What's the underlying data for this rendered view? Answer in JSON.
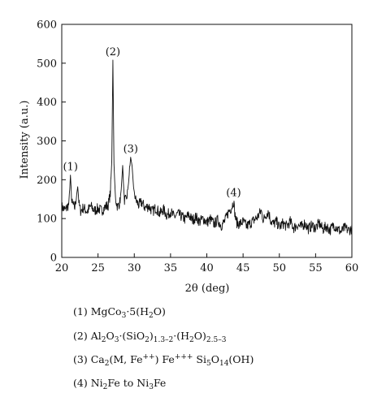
{
  "chart_data": {
    "type": "line",
    "title": "",
    "xlabel": "2θ (deg)",
    "ylabel": "Intensity (a.u.)",
    "xlim": [
      20,
      60
    ],
    "ylim": [
      0,
      600
    ],
    "xticks": [
      20,
      25,
      30,
      35,
      40,
      45,
      50,
      55,
      60
    ],
    "yticks": [
      0,
      100,
      200,
      300,
      400,
      500,
      600
    ],
    "grid": false,
    "line_color": "#111111",
    "series": [
      {
        "x": [
          20.0,
          20.5,
          21.0,
          21.2,
          21.4,
          21.8,
          22.2,
          22.4,
          22.6,
          23.0,
          23.5,
          24.0,
          24.5,
          25.0,
          25.5,
          26.0,
          26.4,
          26.7,
          26.9,
          27.05,
          27.2,
          27.4,
          27.7,
          28.0,
          28.2,
          28.4,
          28.6,
          28.9,
          29.2,
          29.5,
          29.7,
          29.9,
          30.2,
          30.6,
          31.0,
          31.5,
          32.0,
          32.5,
          33.0,
          33.5,
          34.0,
          34.5,
          35.0,
          35.5,
          36.0,
          36.5,
          37.0,
          37.5,
          38.0,
          38.5,
          39.0,
          39.5,
          40.0,
          40.5,
          41.0,
          41.5,
          42.0,
          42.5,
          43.0,
          43.4,
          43.7,
          43.9,
          44.1,
          44.5,
          45.0,
          45.5,
          46.0,
          46.5,
          47.0,
          47.5,
          47.8,
          48.2,
          48.5,
          48.8,
          49.2,
          49.6,
          50.0,
          50.5,
          51.0,
          51.5,
          52.0,
          52.5,
          53.0,
          53.5,
          54.0,
          54.5,
          55.0,
          55.5,
          56.0,
          56.5,
          57.0,
          57.5,
          58.0,
          58.5,
          59.0,
          59.5,
          60.0
        ],
        "y": [
          130,
          122,
          138,
          212,
          140,
          128,
          182,
          135,
          120,
          128,
          118,
          132,
          120,
          126,
          120,
          130,
          135,
          165,
          250,
          508,
          240,
          152,
          130,
          142,
          175,
          237,
          150,
          145,
          190,
          258,
          235,
          180,
          148,
          135,
          142,
          128,
          132,
          118,
          128,
          112,
          124,
          108,
          118,
          104,
          112,
          106,
          98,
          110,
          96,
          104,
          92,
          100,
          90,
          98,
          86,
          96,
          82,
          94,
          118,
          128,
          145,
          108,
          90,
          86,
          92,
          80,
          88,
          96,
          104,
          120,
          96,
          112,
          118,
          96,
          86,
          92,
          78,
          88,
          80,
          92,
          76,
          84,
          78,
          88,
          74,
          82,
          76,
          88,
          72,
          80,
          70,
          84,
          74,
          66,
          76,
          70,
          74
        ]
      }
    ],
    "annotations": [
      {
        "text": "(1)",
        "x": 21.2,
        "y": 212
      },
      {
        "text": "(2)",
        "x": 27.05,
        "y": 508
      },
      {
        "text": "(3)",
        "x": 29.5,
        "y": 258
      },
      {
        "text": "(4)",
        "x": 43.7,
        "y": 145
      }
    ]
  },
  "legend": {
    "entries": [
      {
        "num": "(1)",
        "text": "MgCo3·5(H2O)"
      },
      {
        "num": "(2)",
        "text": "Al2O3·(SiO2)1.3–2·(H2O)2.5–3"
      },
      {
        "num": "(3)",
        "text": "Ca2(M, Fe++) Fe+++ Si5O14(OH)"
      },
      {
        "num": "(4)",
        "text": "Ni2Fe to Ni3Fe"
      }
    ]
  }
}
